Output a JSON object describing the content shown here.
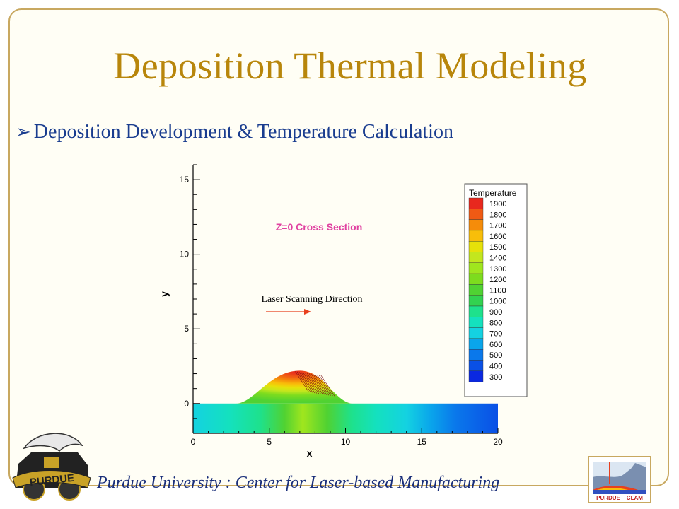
{
  "slide": {
    "title": "Deposition Thermal Modeling",
    "bullet": "Deposition Development & Temperature Calculation",
    "footer": "Purdue University :  Center for Laser-based Manufacturing"
  },
  "logos": {
    "left_text": "PURDUE",
    "right_text": "PURDUE – CLAM"
  },
  "chart_data": {
    "type": "contour",
    "xlabel": "x",
    "ylabel": "y",
    "xlim": [
      0,
      20
    ],
    "ylim": [
      -2,
      16
    ],
    "xticks": [
      0,
      5,
      10,
      15,
      20
    ],
    "yticks": [
      0,
      5,
      10,
      15
    ],
    "annotation_section": "Z=0 Cross Section",
    "annotation_laser": "Laser Scanning Direction",
    "legend_title": "Temperature",
    "legend_levels": [
      1900,
      1800,
      1700,
      1600,
      1500,
      1400,
      1300,
      1200,
      1100,
      1000,
      900,
      800,
      700,
      600,
      500,
      400,
      300
    ],
    "legend_colors": [
      "#e8281e",
      "#f05a14",
      "#f58c0a",
      "#f8be0a",
      "#e6e10a",
      "#c3e61e",
      "#a0e61e",
      "#7ddc1e",
      "#50d232",
      "#32d250",
      "#1ee18c",
      "#14e1be",
      "#14d2e1",
      "#0aa5eb",
      "#0a78eb",
      "#0a50e6",
      "#0a28e1"
    ],
    "bead_peak": [
      7,
      2.2
    ]
  }
}
